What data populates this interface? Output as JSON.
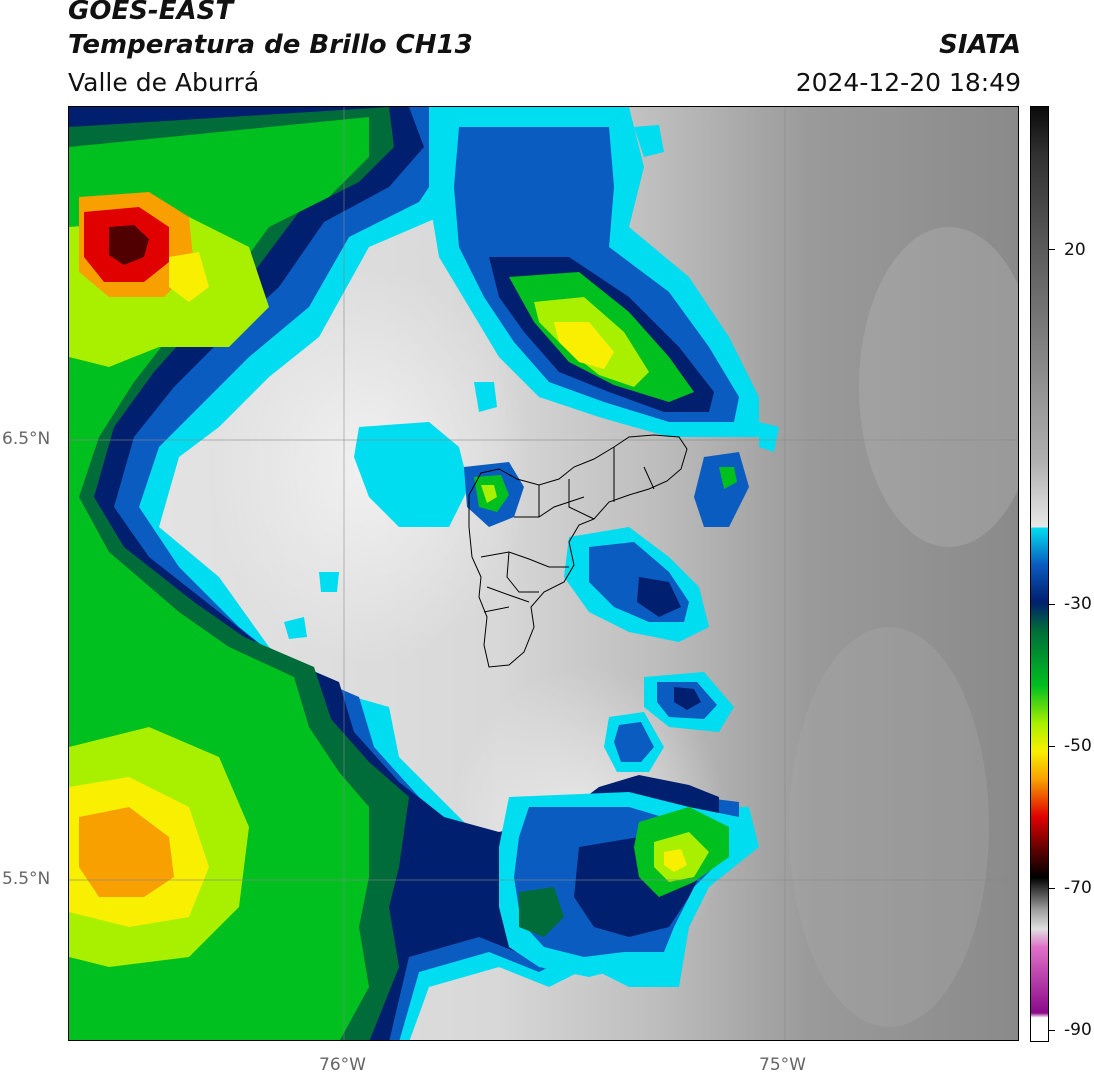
{
  "header": {
    "title_line1": "GOES-EAST",
    "title_line2": "Temperatura de Brillo CH13",
    "subtitle": "Valle de Aburrá",
    "brand": "SIATA",
    "datetime": "2024-12-20 18:49"
  },
  "map": {
    "lat_labels": [
      "6.5°N",
      "5.5°N"
    ],
    "lon_labels": [
      "76°W",
      "75°W"
    ],
    "gridline_color": "#888888",
    "boundary_color": "#000000",
    "region": "Valle de Aburrá municipalities outline"
  },
  "colorbar": {
    "ticks": [
      "20",
      "-30",
      "-50",
      "-70",
      "-90"
    ],
    "scale_range": [
      -90,
      40
    ],
    "colors": {
      "warm_gray_top": "#0a0a0a",
      "mid_gray": "#888888",
      "light_gray": "#f2f2f2",
      "cyan": "#00e0f0",
      "blue": "#0a5cc0",
      "navy": "#001f6e",
      "dark_green": "#006c3a",
      "green": "#00c020",
      "lime": "#a8f000",
      "yellow": "#f8f000",
      "orange": "#f8a000",
      "red": "#e00000",
      "dark_red": "#500000",
      "black": "#000000",
      "pink": "#e070c8",
      "purple": "#8a0a8a"
    }
  }
}
